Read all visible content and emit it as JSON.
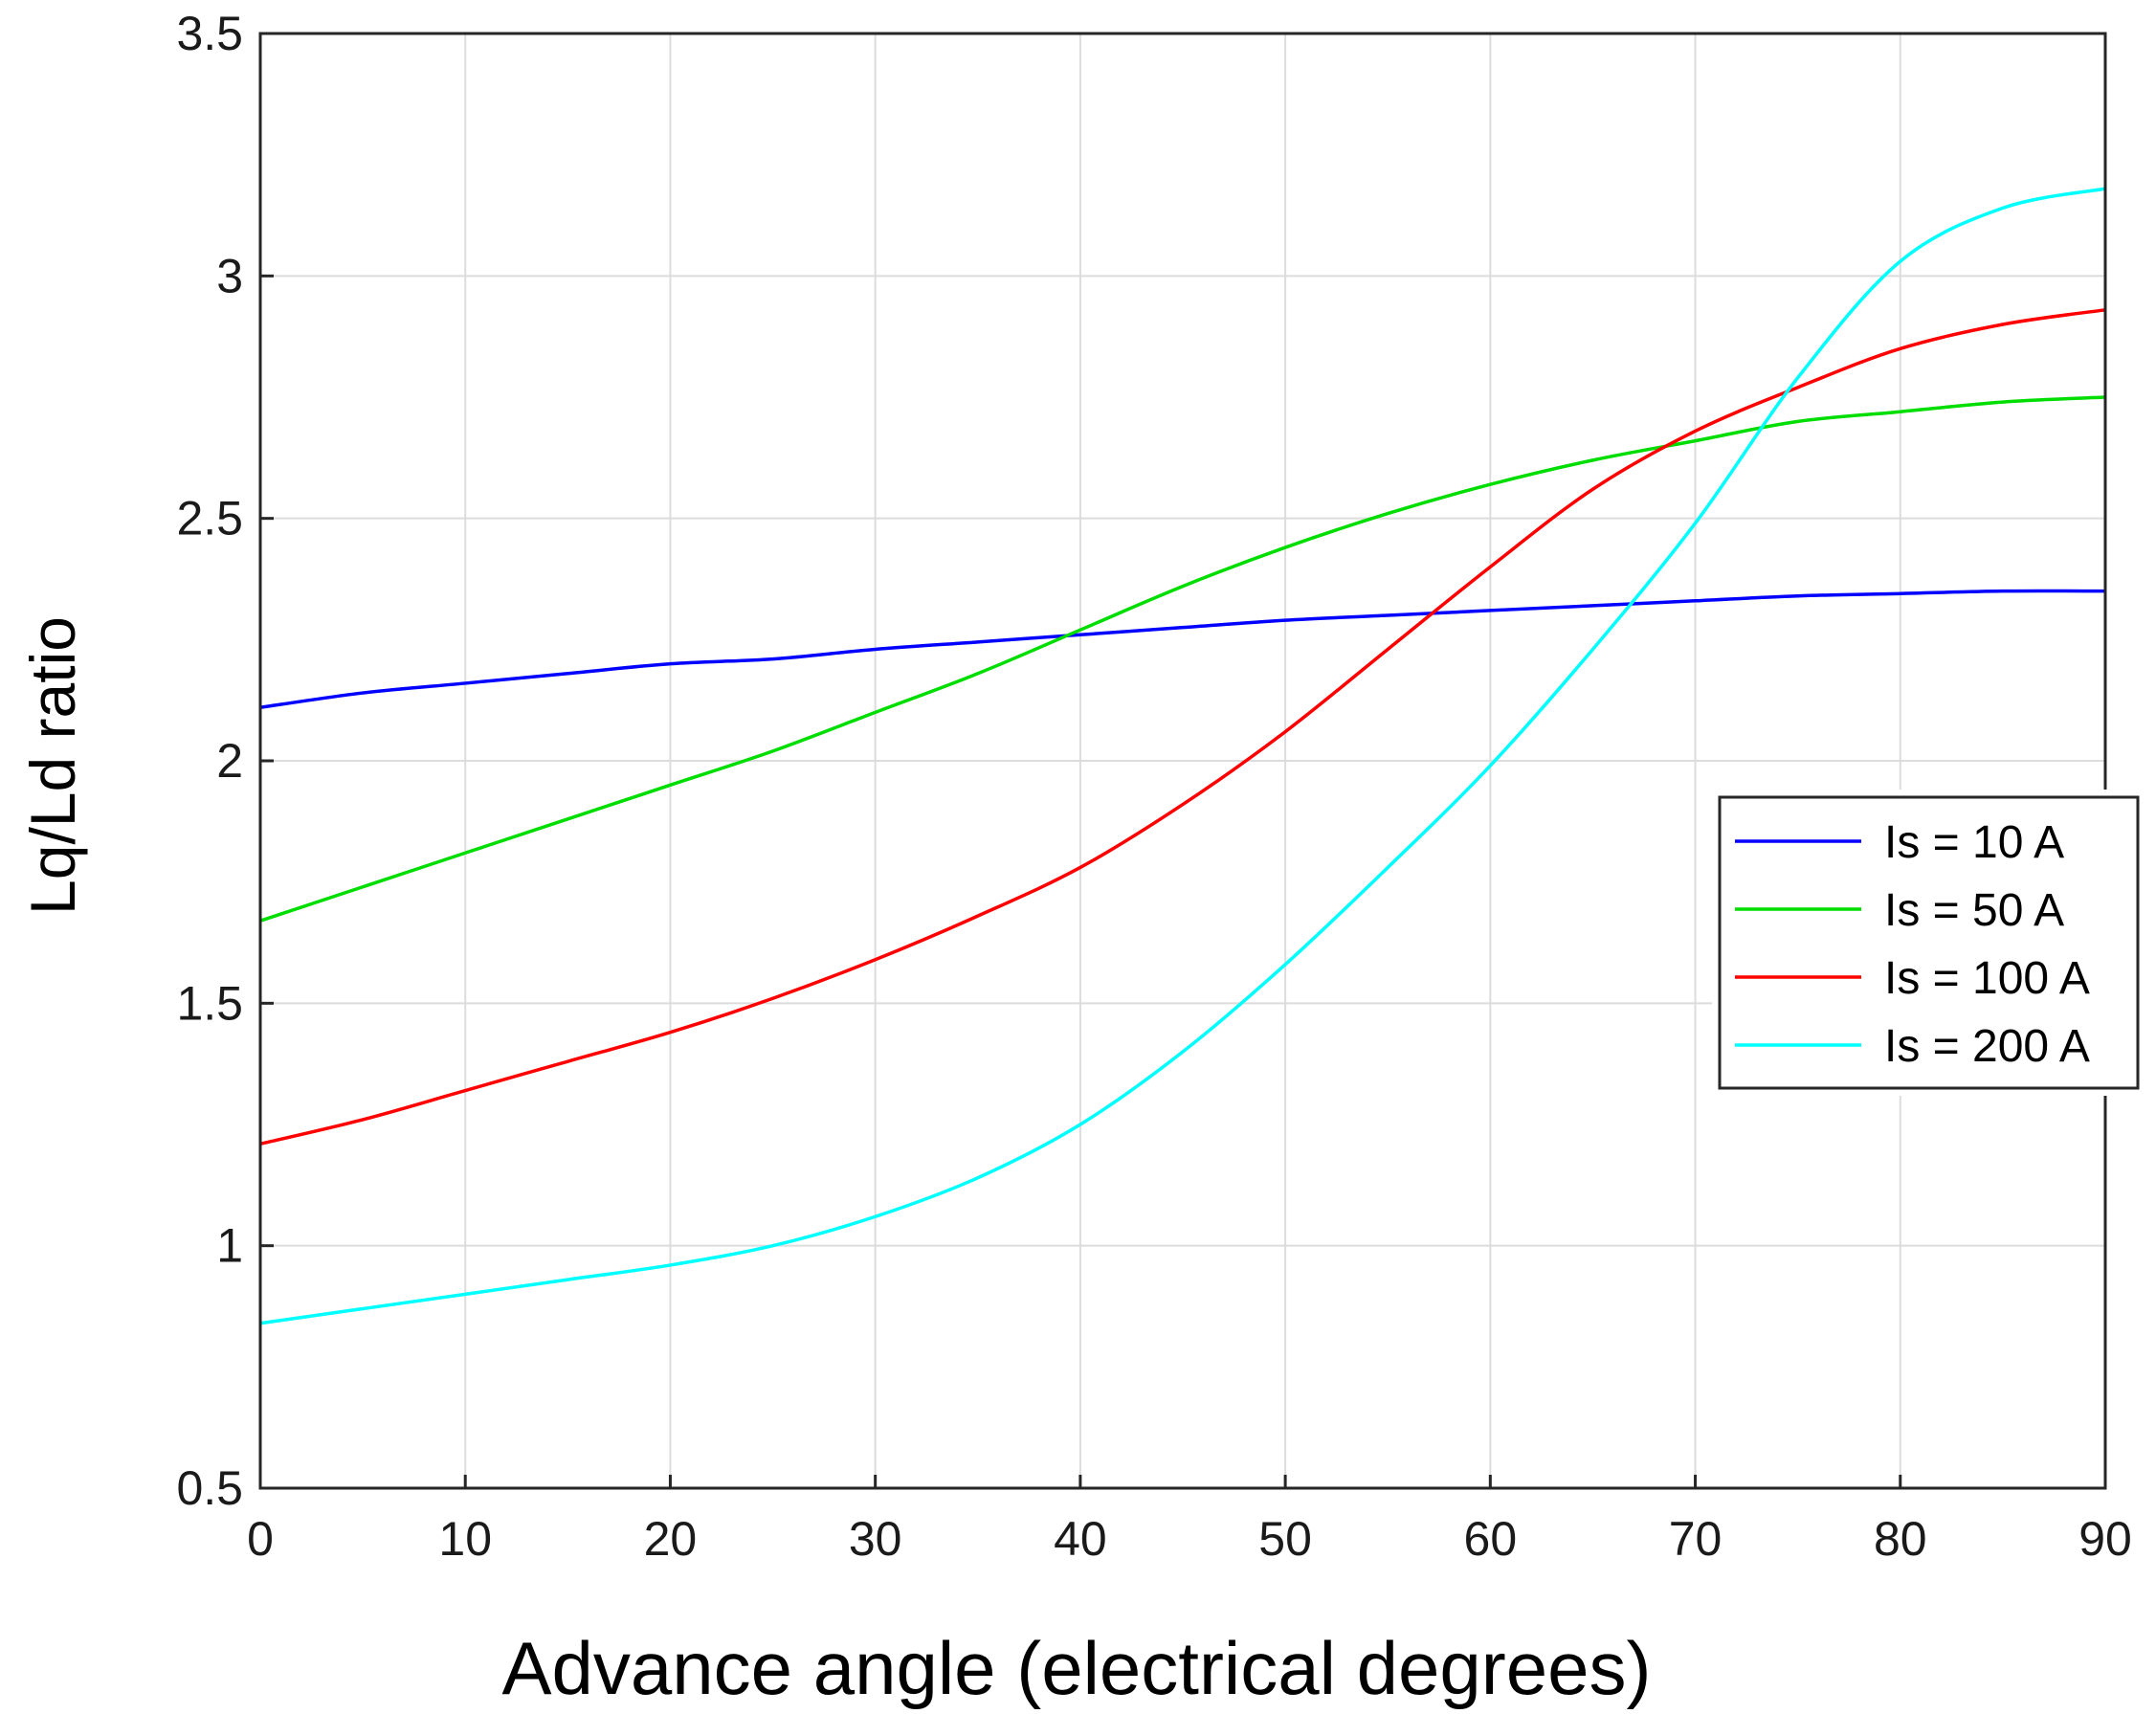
{
  "chart_data": {
    "type": "line",
    "title": "",
    "xlabel": "Advance angle (electrical degrees)",
    "ylabel": "Lq/Ld ratio",
    "xlim": [
      0,
      90
    ],
    "ylim": [
      0.5,
      3.5
    ],
    "xticks": [
      0,
      10,
      20,
      30,
      40,
      50,
      60,
      70,
      80,
      90
    ],
    "yticks": [
      0.5,
      1,
      1.5,
      2,
      2.5,
      3,
      3.5
    ],
    "xtick_labels": [
      "0",
      "10",
      "20",
      "30",
      "40",
      "50",
      "60",
      "70",
      "80",
      "90"
    ],
    "ytick_labels": [
      "0.5",
      "1",
      "1.5",
      "2",
      "2.5",
      "3",
      "3.5"
    ],
    "grid": true,
    "legend_position": "right-middle",
    "x": [
      0,
      5,
      10,
      15,
      20,
      25,
      30,
      35,
      40,
      45,
      50,
      55,
      60,
      65,
      70,
      75,
      80,
      85,
      90
    ],
    "series": [
      {
        "name": "Is = 10 A",
        "color": "#0000ff",
        "values": [
          2.11,
          2.14,
          2.16,
          2.18,
          2.2,
          2.21,
          2.23,
          2.245,
          2.26,
          2.275,
          2.29,
          2.3,
          2.31,
          2.32,
          2.33,
          2.34,
          2.345,
          2.35,
          2.35
        ]
      },
      {
        "name": "Is = 50 A",
        "color": "#00dd00",
        "values": [
          1.67,
          1.74,
          1.81,
          1.88,
          1.95,
          2.02,
          2.1,
          2.18,
          2.27,
          2.36,
          2.44,
          2.51,
          2.57,
          2.62,
          2.66,
          2.7,
          2.72,
          2.74,
          2.75
        ]
      },
      {
        "name": "Is = 100 A",
        "color": "#ff0000",
        "values": [
          1.21,
          1.26,
          1.32,
          1.38,
          1.44,
          1.51,
          1.59,
          1.68,
          1.78,
          1.91,
          2.06,
          2.23,
          2.4,
          2.56,
          2.68,
          2.77,
          2.85,
          2.9,
          2.93
        ]
      },
      {
        "name": "Is = 200 A",
        "color": "#00ffff",
        "values": [
          0.84,
          0.87,
          0.9,
          0.93,
          0.96,
          1.0,
          1.06,
          1.14,
          1.25,
          1.4,
          1.58,
          1.78,
          1.99,
          2.23,
          2.49,
          2.79,
          3.03,
          3.14,
          3.18
        ]
      }
    ]
  }
}
